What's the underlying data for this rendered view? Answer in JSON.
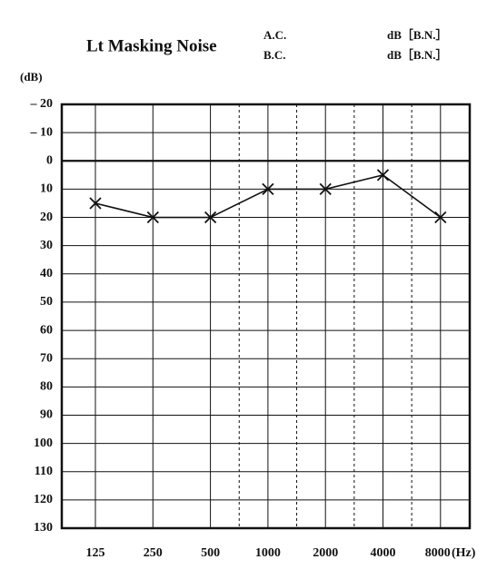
{
  "chart_data": {
    "type": "line",
    "title": "Lt Masking Noise",
    "annotations": [
      "A.C.",
      "B.C.",
      "dB［B.N.］",
      "dB［B.N.］"
    ],
    "ylabel": "(dB)",
    "xlabel": "(Hz)",
    "categories": [
      "125",
      "250",
      "500",
      "1000",
      "2000",
      "4000",
      "8000"
    ],
    "series": [
      {
        "name": "Lt Masking Noise",
        "color": "#111111",
        "values": [
          15,
          20,
          20,
          10,
          10,
          5,
          20
        ]
      }
    ],
    "ylim": [
      -20,
      130
    ],
    "yticks": [
      {
        "value": -20,
        "label": "– 20"
      },
      {
        "value": -10,
        "label": "– 10"
      },
      0,
      10,
      20,
      30,
      40,
      50,
      60,
      70,
      80,
      90,
      100,
      110,
      120,
      130
    ],
    "y_inverted": true,
    "grid": true
  }
}
